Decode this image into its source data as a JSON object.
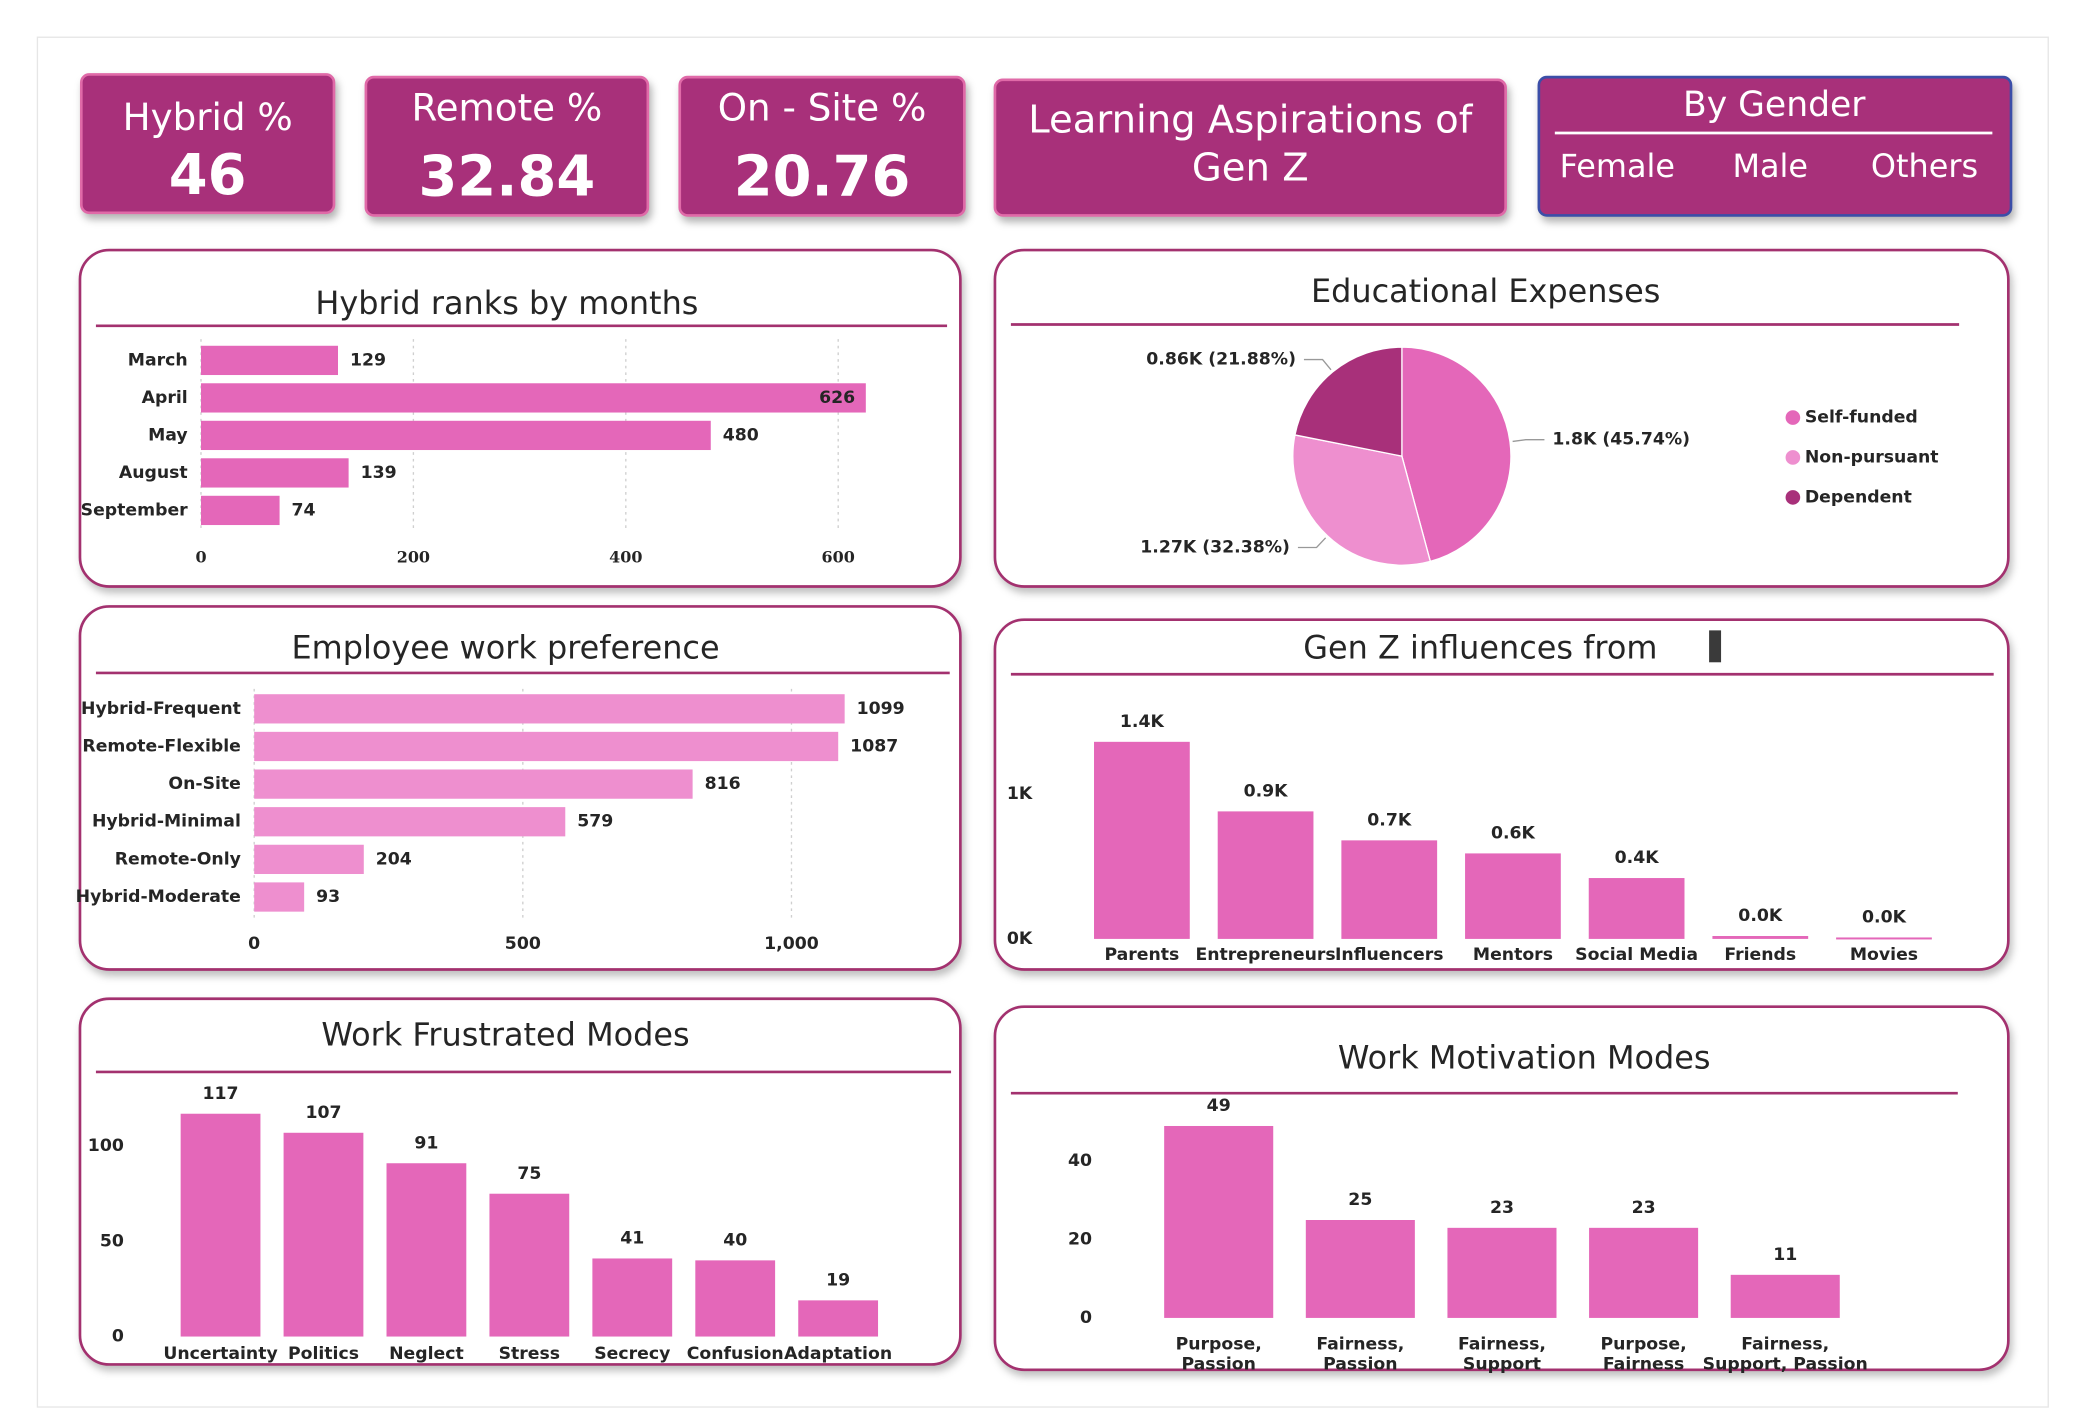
{
  "header": {
    "kpis": [
      {
        "label": "Hybrid %",
        "value": 46
      },
      {
        "label": "Remote %",
        "value": 32.84
      },
      {
        "label": "On - Site %",
        "value": 20.76
      }
    ],
    "title": "Learning Aspirations of Gen Z",
    "gender_filter": {
      "title": "By Gender",
      "options": [
        "Female",
        "Male",
        "Others"
      ]
    }
  },
  "chart_data": [
    {
      "type": "bar",
      "orientation": "horizontal",
      "title": "Hybrid ranks by months",
      "categories": [
        "March",
        "April",
        "May",
        "August",
        "September"
      ],
      "values": [
        129,
        626,
        480,
        139,
        74
      ],
      "color": "#e467b9",
      "xlim": [
        0,
        700
      ],
      "xticks": [
        0,
        200,
        400,
        600
      ],
      "grid": true
    },
    {
      "type": "pie",
      "title": "Educational Expenses",
      "categories": [
        "Self-funded",
        "Non-pursuant",
        "Dependent"
      ],
      "values": [
        1800,
        1270,
        860
      ],
      "value_labels": [
        "1.8K (45.74%)",
        "1.27K (32.38%)",
        "0.86K (21.88%)"
      ],
      "colors": [
        "#e467b9",
        "#ee8fcf",
        "#a8307a"
      ],
      "legend": "right"
    },
    {
      "type": "bar",
      "orientation": "horizontal",
      "title": "Employee work preference",
      "categories": [
        "Hybrid-Frequent",
        "Remote-Flexible",
        "On-Site",
        "Hybrid-Minimal",
        "Remote-Only",
        "Hybrid-Moderate"
      ],
      "values": [
        1099,
        1087,
        816,
        579,
        204,
        93
      ],
      "color": "#ee8fcf",
      "xlim": [
        0,
        1250
      ],
      "xticks": [
        0,
        500,
        {
          "value": 1000,
          "label": "1,000"
        }
      ],
      "grid": true
    },
    {
      "type": "bar",
      "orientation": "vertical",
      "title": "Gen Z influences from",
      "categories": [
        "Parents",
        "Entrepreneurs",
        "Influencers",
        "Mentors",
        "Social Media",
        "Friends",
        "Movies"
      ],
      "values": [
        1360,
        880,
        680,
        590,
        420,
        20,
        10
      ],
      "value_labels": [
        "1.4K",
        "0.9K",
        "0.7K",
        "0.6K",
        "0.4K",
        "0.0K",
        "0.0K"
      ],
      "color": "#e467b9",
      "ylim": [
        0,
        1450
      ],
      "yticks": [
        {
          "value": 0,
          "label": "0K"
        },
        {
          "value": 1000,
          "label": "1K"
        }
      ],
      "grid": false
    },
    {
      "type": "bar",
      "orientation": "vertical",
      "title": "Work Frustrated Modes",
      "categories": [
        "Uncertainty",
        "Politics",
        "Neglect",
        "Stress",
        "Secrecy",
        "Confusion",
        "Adaptation"
      ],
      "values": [
        117,
        107,
        91,
        75,
        41,
        40,
        19
      ],
      "color": "#e467b9",
      "ylim": [
        0,
        125
      ],
      "yticks": [
        0,
        50,
        100
      ],
      "grid": false
    },
    {
      "type": "bar",
      "orientation": "vertical",
      "title": "Work Motivation Modes",
      "categories": [
        "Purpose, Passion",
        "Fairness, Passion",
        "Fairness, Support",
        "Purpose, Fairness",
        "Fairness, Support, Passion"
      ],
      "values": [
        49,
        25,
        23,
        23,
        11
      ],
      "color": "#e467b9",
      "ylim": [
        0,
        55
      ],
      "yticks": [
        0,
        20,
        40
      ],
      "grid": false
    }
  ]
}
